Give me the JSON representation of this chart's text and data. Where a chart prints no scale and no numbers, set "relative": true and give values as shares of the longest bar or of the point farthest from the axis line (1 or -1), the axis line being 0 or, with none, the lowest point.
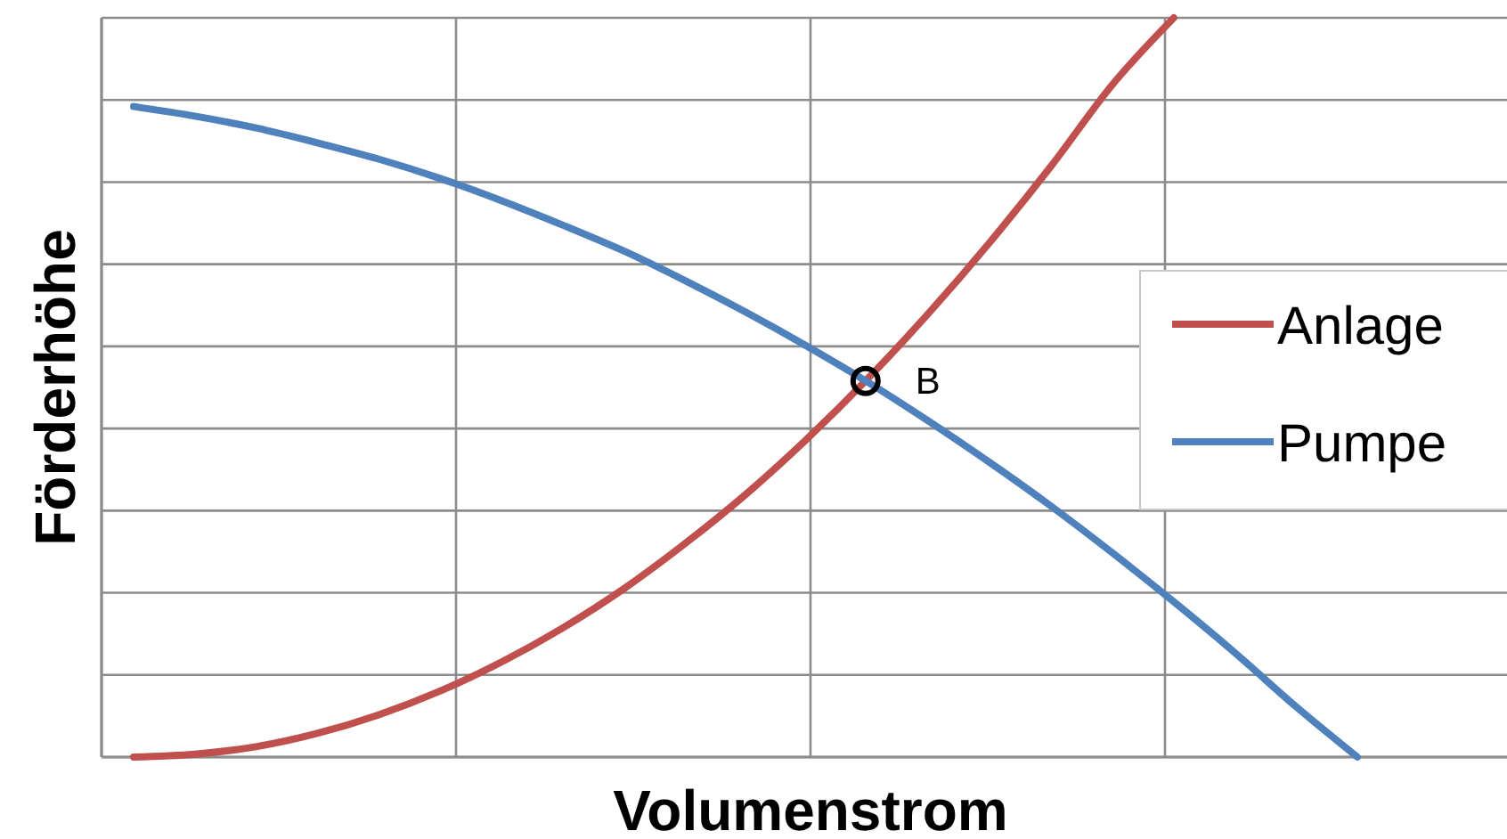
{
  "chart_data": {
    "type": "line",
    "relative": true,
    "xlabel": "Volumenstrom",
    "ylabel": "Förderhöhe",
    "grid": true,
    "legend": "right",
    "marker": "none",
    "line_style": "solid",
    "categories": [
      null,
      null,
      null,
      null,
      null,
      null,
      null,
      null,
      null,
      null,
      null,
      null,
      null,
      null,
      null,
      null,
      null,
      null,
      null,
      null,
      null
    ],
    "series": [
      {
        "name": "Anlage",
        "color": "#c0504d",
        "values": [
          0,
          0.004,
          0.014,
          0.032,
          0.057,
          0.089,
          0.128,
          0.174,
          0.227,
          0.288,
          0.355,
          0.43,
          0.512,
          0.601,
          0.697,
          0.8,
          0.91,
          1.0,
          null,
          null,
          null
        ]
      },
      {
        "name": "Pumpe",
        "color": "#4f81bd",
        "values": [
          0.88,
          0.867,
          0.851,
          0.831,
          0.809,
          0.783,
          0.753,
          0.72,
          0.685,
          0.645,
          0.602,
          0.556,
          0.507,
          0.454,
          0.398,
          0.339,
          0.276,
          0.21,
          0.141,
          0.068,
          0.0
        ]
      }
    ],
    "annotations": [
      "B"
    ]
  }
}
